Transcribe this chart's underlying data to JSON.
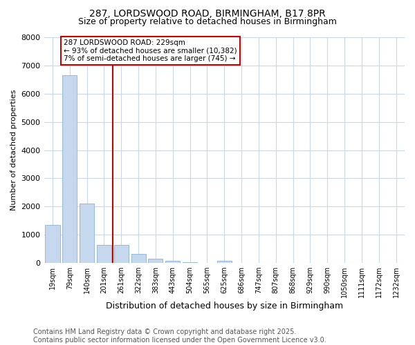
{
  "title_line1": "287, LORDSWOOD ROAD, BIRMINGHAM, B17 8PR",
  "title_line2": "Size of property relative to detached houses in Birmingham",
  "xlabel": "Distribution of detached houses by size in Birmingham",
  "ylabel": "Number of detached properties",
  "categories": [
    "19sqm",
    "79sqm",
    "140sqm",
    "201sqm",
    "261sqm",
    "322sqm",
    "383sqm",
    "443sqm",
    "504sqm",
    "565sqm",
    "625sqm",
    "686sqm",
    "747sqm",
    "807sqm",
    "868sqm",
    "929sqm",
    "990sqm",
    "1050sqm",
    "1111sqm",
    "1172sqm",
    "1232sqm"
  ],
  "values": [
    1350,
    6650,
    2100,
    630,
    630,
    310,
    150,
    70,
    30,
    0,
    80,
    0,
    0,
    0,
    0,
    0,
    0,
    0,
    0,
    0,
    0
  ],
  "bar_color": "#c5d8ee",
  "bar_edge_color": "#8ab0d4",
  "vline_x_index": 3,
  "vline_color": "#cc0000",
  "annotation_text": "287 LORDSWOOD ROAD: 229sqm\n← 93% of detached houses are smaller (10,382)\n7% of semi-detached houses are larger (745) →",
  "annotation_box_color": "#ffffff",
  "annotation_border_color": "#cc0000",
  "ylim": [
    0,
    8000
  ],
  "yticks": [
    0,
    1000,
    2000,
    3000,
    4000,
    5000,
    6000,
    7000,
    8000
  ],
  "footer_line1": "Contains HM Land Registry data © Crown copyright and database right 2025.",
  "footer_line2": "Contains public sector information licensed under the Open Government Licence v3.0.",
  "bg_color": "#ffffff",
  "plot_bg_color": "#ffffff",
  "grid_color": "#c8d8e8",
  "title_fontsize": 10,
  "subtitle_fontsize": 9,
  "tick_fontsize": 7,
  "ylabel_fontsize": 8,
  "xlabel_fontsize": 9,
  "footer_fontsize": 7
}
